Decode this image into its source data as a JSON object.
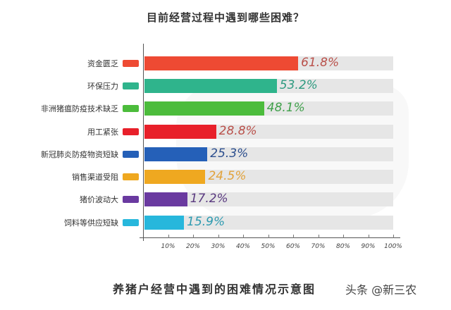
{
  "title": "目前经营过程中遇到哪些困难？",
  "footer": "养猪户经营中遇到的困难情况示意图",
  "watermark": "头条 @新三农",
  "x_ticks": [
    "10%",
    "20%",
    "30%",
    "40%",
    "50%",
    "60%",
    "70%",
    "80%",
    "90%",
    "100%"
  ],
  "rows": [
    {
      "label": "资金匮乏",
      "value": 61.8,
      "value_label": "61.8%",
      "color": "#ee4a33",
      "text_color": "#b9504a"
    },
    {
      "label": "环保压力",
      "value": 53.2,
      "value_label": "53.2%",
      "color": "#2fb48c",
      "text_color": "#2e9a80"
    },
    {
      "label": "非洲猪瘟防疫技术缺乏",
      "value": 48.1,
      "value_label": "48.1%",
      "color": "#4cbc3c",
      "text_color": "#3fa04a"
    },
    {
      "label": "用工紧张",
      "value": 28.8,
      "value_label": "28.8%",
      "color": "#e8202a",
      "text_color": "#b9504a"
    },
    {
      "label": "新冠肺炎防疫物资短缺",
      "value": 25.3,
      "value_label": "25.3%",
      "color": "#2560b8",
      "text_color": "#2d4f8e"
    },
    {
      "label": "销售渠道受阻",
      "value": 24.5,
      "value_label": "24.5%",
      "color": "#efa820",
      "text_color": "#e2a23a"
    },
    {
      "label": "猪价波动大",
      "value": 17.2,
      "value_label": "17.2%",
      "color": "#6a3aa0",
      "text_color": "#5a3a80"
    },
    {
      "label": "饲料等供应短缺",
      "value": 15.9,
      "value_label": "15.9%",
      "color": "#27b7dc",
      "text_color": "#2c9ab0"
    }
  ],
  "chart_data": {
    "type": "bar",
    "orientation": "horizontal",
    "title": "目前经营过程中遇到哪些困难？",
    "subtitle": "养猪户经营中遇到的困难情况示意图",
    "categories": [
      "资金匮乏",
      "环保压力",
      "非洲猪瘟防疫技术缺乏",
      "用工紧张",
      "新冠肺炎防疫物资短缺",
      "销售渠道受阻",
      "猪价波动大",
      "饲料等供应短缺"
    ],
    "values": [
      61.8,
      53.2,
      48.1,
      28.8,
      25.3,
      24.5,
      17.2,
      15.9
    ],
    "xlabel": "",
    "ylabel": "",
    "xlim": [
      0,
      100
    ],
    "x_tick_labels": [
      "10%",
      "20%",
      "30%",
      "40%",
      "50%",
      "60%",
      "70%",
      "80%",
      "90%",
      "100%"
    ],
    "grid": false,
    "legend": "color swatches left of bars"
  }
}
